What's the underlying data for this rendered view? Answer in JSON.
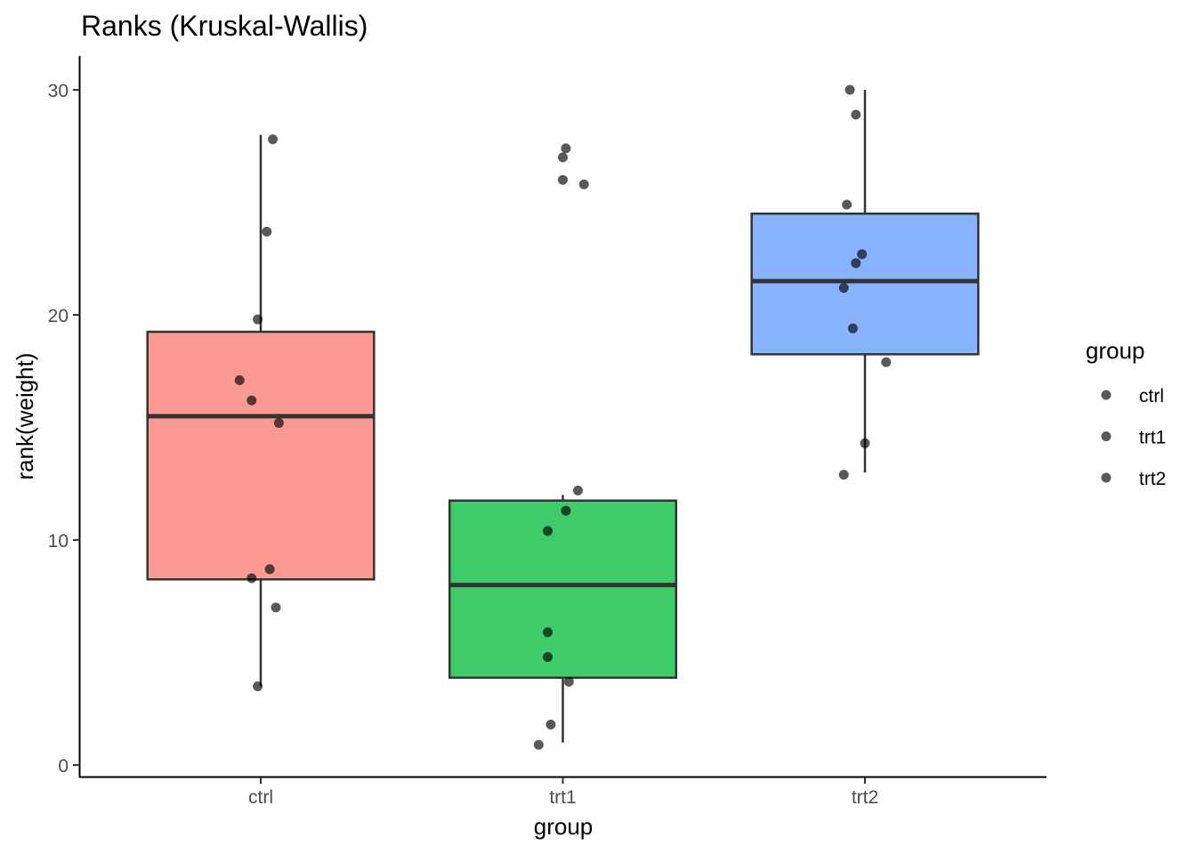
{
  "chart_data": {
    "type": "boxplot",
    "title": "Ranks (Kruskal-Wallis)",
    "xlabel": "group",
    "ylabel": "rank(weight)",
    "categories": [
      "ctrl",
      "trt1",
      "trt2"
    ],
    "ylim": [
      -0.5,
      31.5
    ],
    "yticks": [
      0,
      10,
      20,
      30
    ],
    "ytick_labels": [
      "0",
      "10",
      "20",
      "30"
    ],
    "grid": false,
    "legend": {
      "title": "group",
      "placement": "right",
      "entries": [
        "ctrl",
        "trt1",
        "trt2"
      ]
    },
    "colors": {
      "ctrl": "#F8766D",
      "trt1": "#00BA38",
      "trt2": "#619CFF",
      "points": "#333333",
      "box_outline": "#333333"
    },
    "boxes": [
      {
        "group": "ctrl",
        "lower_whisker": 3.5,
        "q1": 8.25,
        "median": 15.5,
        "q3": 19.25,
        "upper_whisker": 28
      },
      {
        "group": "trt1",
        "lower_whisker": 1,
        "q1": 3.88,
        "median": 8,
        "q3": 11.75,
        "upper_whisker": 12
      },
      {
        "group": "trt2",
        "lower_whisker": 13,
        "q1": 18.25,
        "median": 21.5,
        "q3": 24.5,
        "upper_whisker": 30
      }
    ],
    "points": [
      {
        "group": "ctrl",
        "jitter": 0.04,
        "y": 27.8
      },
      {
        "group": "ctrl",
        "jitter": 0.02,
        "y": 23.7
      },
      {
        "group": "ctrl",
        "jitter": -0.01,
        "y": 19.8
      },
      {
        "group": "ctrl",
        "jitter": -0.07,
        "y": 17.1
      },
      {
        "group": "ctrl",
        "jitter": -0.03,
        "y": 16.2
      },
      {
        "group": "ctrl",
        "jitter": 0.06,
        "y": 15.2
      },
      {
        "group": "ctrl",
        "jitter": 0.03,
        "y": 8.7
      },
      {
        "group": "ctrl",
        "jitter": -0.03,
        "y": 8.3
      },
      {
        "group": "ctrl",
        "jitter": 0.05,
        "y": 7.0
      },
      {
        "group": "ctrl",
        "jitter": -0.01,
        "y": 3.5
      },
      {
        "group": "trt1",
        "jitter": 0.01,
        "y": 27.4
      },
      {
        "group": "trt1",
        "jitter": 0.0,
        "y": 27.0
      },
      {
        "group": "trt1",
        "jitter": 0.0,
        "y": 26.0
      },
      {
        "group": "trt1",
        "jitter": 0.07,
        "y": 25.8
      },
      {
        "group": "trt1",
        "jitter": 0.05,
        "y": 12.2
      },
      {
        "group": "trt1",
        "jitter": 0.01,
        "y": 11.3
      },
      {
        "group": "trt1",
        "jitter": -0.05,
        "y": 10.4
      },
      {
        "group": "trt1",
        "jitter": -0.05,
        "y": 5.9
      },
      {
        "group": "trt1",
        "jitter": -0.05,
        "y": 4.8
      },
      {
        "group": "trt1",
        "jitter": 0.02,
        "y": 3.7
      },
      {
        "group": "trt1",
        "jitter": -0.04,
        "y": 1.8
      },
      {
        "group": "trt1",
        "jitter": -0.08,
        "y": 0.9
      },
      {
        "group": "trt2",
        "jitter": -0.05,
        "y": 30.0
      },
      {
        "group": "trt2",
        "jitter": -0.03,
        "y": 28.9
      },
      {
        "group": "trt2",
        "jitter": -0.06,
        "y": 24.9
      },
      {
        "group": "trt2",
        "jitter": -0.01,
        "y": 22.7
      },
      {
        "group": "trt2",
        "jitter": -0.03,
        "y": 22.3
      },
      {
        "group": "trt2",
        "jitter": -0.07,
        "y": 21.2
      },
      {
        "group": "trt2",
        "jitter": -0.04,
        "y": 19.4
      },
      {
        "group": "trt2",
        "jitter": 0.07,
        "y": 17.9
      },
      {
        "group": "trt2",
        "jitter": 0.0,
        "y": 14.3
      },
      {
        "group": "trt2",
        "jitter": -0.07,
        "y": 12.9
      }
    ]
  }
}
